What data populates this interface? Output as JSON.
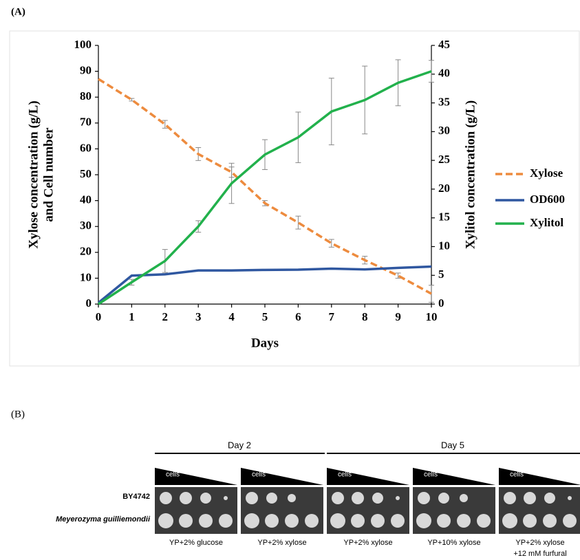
{
  "chart_data": {
    "type": "line",
    "panel_label": "(A)",
    "xlabel": "Days",
    "ylabel": [
      "Xylose concentration (g/L)",
      "and Cell number"
    ],
    "y2label": "Xylitol concentration (g/L)",
    "x": [
      0,
      1,
      2,
      3,
      4,
      5,
      6,
      7,
      8,
      9,
      10
    ],
    "xlim": [
      0,
      10
    ],
    "xticks": [
      0,
      1,
      2,
      3,
      4,
      5,
      6,
      7,
      8,
      9,
      10
    ],
    "ylim": [
      0,
      100
    ],
    "yticks": [
      0,
      10,
      20,
      30,
      40,
      50,
      60,
      70,
      80,
      90,
      100
    ],
    "y2lim": [
      0,
      45
    ],
    "y2ticks": [
      0,
      5,
      10,
      15,
      20,
      25,
      30,
      35,
      40,
      45
    ],
    "legend": "right",
    "series": [
      {
        "name": "Xylose",
        "color": "#ed8b3e",
        "dashed": true,
        "values": [
          87,
          79,
          69.5,
          58,
          51,
          39,
          31.5,
          23.5,
          17,
          11,
          4
        ],
        "errors": [
          0,
          0.5,
          1.5,
          2.5,
          2,
          1,
          2.5,
          1.5,
          1.5,
          1,
          3.3
        ]
      },
      {
        "name": "OD600",
        "color": "#2f57a0",
        "values": [
          0.5,
          11,
          11.5,
          13,
          13,
          13.2,
          13.3,
          13.7,
          13.4,
          14,
          14.5
        ]
      },
      {
        "name": "Xylitol",
        "color": "#22b14c",
        "axis": "y2",
        "values": [
          0,
          3.8,
          7.5,
          13.5,
          21,
          26,
          29,
          33.5,
          35.5,
          38.5,
          40.5
        ],
        "errors": [
          0,
          0.5,
          2,
          1,
          3.5,
          2.6,
          4.4,
          5.8,
          5.9,
          4,
          1.9
        ]
      }
    ]
  },
  "panel_b": {
    "panel_label": "(B)",
    "groups": [
      "Day 2",
      "Day 5"
    ],
    "wedge_label": "cells",
    "strains": [
      "BY4742",
      "Meyerozyma guilliemondii"
    ],
    "conditions": [
      [
        "YP+2% glucose"
      ],
      [
        "YP+2% xylose"
      ],
      [
        "YP+2% xylose"
      ],
      [
        "YP+10% xylose"
      ],
      [
        "YP+2% xylose",
        "+12 mM furfural"
      ]
    ]
  }
}
